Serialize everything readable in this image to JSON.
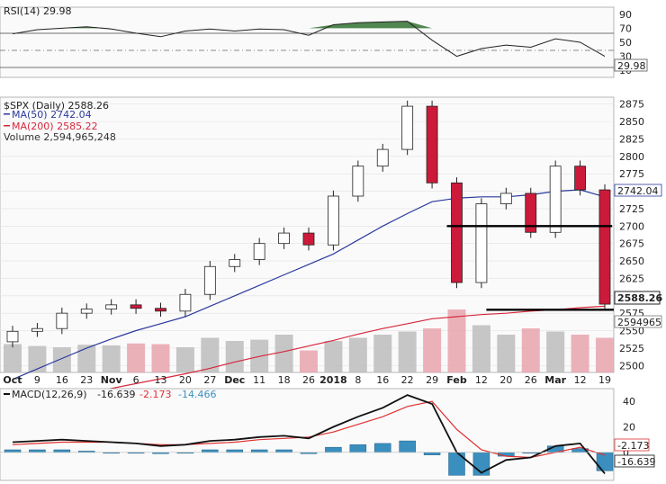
{
  "rsi_panel": {
    "label": "RSI(14) 29.98",
    "ticks": [
      "90",
      "70",
      "50",
      "30",
      "10"
    ],
    "current_value": "29.98"
  },
  "price_panel": {
    "legend": {
      "symbol": "$SPX (Daily) 2588.26",
      "ma50": "MA(50) 2742.04",
      "ma200": "MA(200) 2585.22",
      "volume": "Volume 2,594,965,248"
    },
    "ticks": [
      "2875",
      "2850",
      "2825",
      "2800",
      "2775",
      "2750",
      "2725",
      "2700",
      "2675",
      "2650",
      "2625",
      "2600",
      "2575",
      "2550",
      "2525",
      "2500"
    ],
    "price_tag": "2588.26",
    "ma50_tag": "2742.04",
    "volume_tag": "2594965",
    "support_levels": [
      2700,
      2580
    ]
  },
  "x_axis": {
    "labels": [
      "Oct",
      "9",
      "16",
      "23",
      "Nov",
      "6",
      "13",
      "20",
      "27",
      "Dec",
      "11",
      "18",
      "26",
      "2018",
      "8",
      "16",
      "22",
      "29",
      "Feb",
      "12",
      "20",
      "26",
      "Mar",
      "12",
      "19"
    ]
  },
  "macd_panel": {
    "label_name": "MACD(12,26,9)",
    "macd_value": "-16.639",
    "signal_value": "-2.173",
    "hist_value": "-14.466",
    "ticks": [
      "40",
      "20",
      "0"
    ],
    "macd_tag": "-16.639",
    "signal_tag": "-2.173"
  },
  "colors": {
    "up": "#ffffff",
    "down": "#cc1a3a",
    "ma50": "#2b3a9e",
    "ma200": "#d6283b",
    "rsi_fill": "#3d7a3d",
    "macd_hist": "#3a8fbf",
    "signal": "#e03030",
    "volume_up": "#bcbcbc",
    "volume_down": "#e8a3ad"
  },
  "chart_data": {
    "type": "candlestick",
    "x": [
      "2017-10-02",
      "2017-10-09",
      "2017-10-16",
      "2017-10-23",
      "2017-10-30",
      "2017-11-06",
      "2017-11-13",
      "2017-11-20",
      "2017-11-27",
      "2017-12-04",
      "2017-12-11",
      "2017-12-18",
      "2017-12-26",
      "2018-01-02",
      "2018-01-08",
      "2018-01-16",
      "2018-01-22",
      "2018-01-29",
      "2018-02-05",
      "2018-02-12",
      "2018-02-20",
      "2018-02-26",
      "2018-03-05",
      "2018-03-12",
      "2018-03-19"
    ],
    "close": [
      2549,
      2553,
      2575,
      2581,
      2587,
      2582,
      2578,
      2602,
      2642,
      2652,
      2675,
      2690,
      2673,
      2743,
      2786,
      2810,
      2872,
      2762,
      2619,
      2732,
      2747,
      2691,
      2786,
      2752,
      2588
    ],
    "ma50": [
      2480,
      2495,
      2510,
      2525,
      2538,
      2550,
      2560,
      2570,
      2585,
      2600,
      2615,
      2630,
      2645,
      2660,
      2680,
      2700,
      2718,
      2735,
      2740,
      2742,
      2742,
      2745,
      2750,
      2752,
      2742
    ],
    "ma200": [
      2438,
      2445,
      2452,
      2460,
      2467,
      2474,
      2481,
      2488,
      2496,
      2505,
      2513,
      2520,
      2528,
      2536,
      2545,
      2553,
      2560,
      2567,
      2570,
      2573,
      2575,
      2578,
      2580,
      2583,
      2585
    ],
    "rsi": [
      62,
      68,
      70,
      72,
      69,
      63,
      58,
      66,
      69,
      66,
      69,
      68,
      60,
      75,
      78,
      79,
      80,
      53,
      30,
      41,
      46,
      43,
      55,
      50,
      29.98
    ],
    "macd": [
      8,
      9,
      10,
      9,
      8,
      7,
      5,
      6,
      9,
      10,
      12,
      13,
      11,
      20,
      28,
      35,
      45,
      38,
      0,
      -16,
      -6,
      -4,
      5,
      7,
      -16.639
    ],
    "signal": [
      6,
      7,
      8,
      8,
      8,
      7,
      6,
      6,
      7,
      8,
      10,
      11,
      12,
      16,
      22,
      28,
      36,
      40,
      18,
      2,
      -3,
      -4,
      0,
      4,
      -2.173
    ],
    "ylim": [
      2490,
      2885
    ],
    "title": "$SPX (Daily) 2588.26"
  }
}
